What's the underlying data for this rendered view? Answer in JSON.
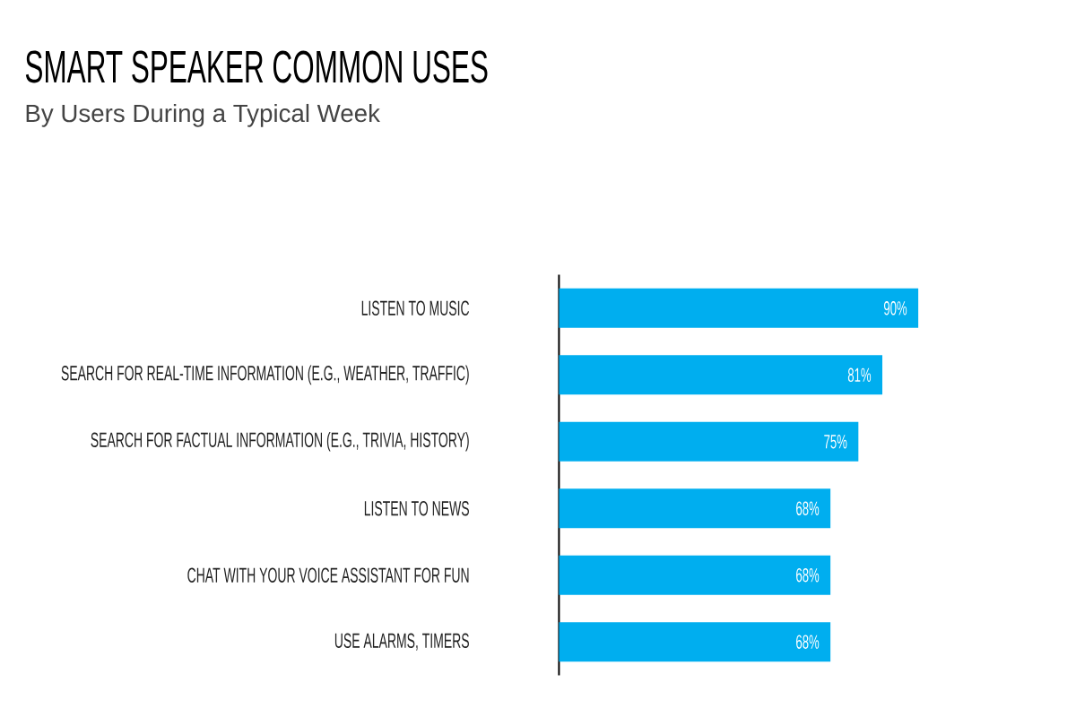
{
  "chart_data": {
    "type": "bar",
    "orientation": "horizontal",
    "title": "SMART SPEAKER COMMON USES",
    "subtitle": "By Users During a Typical Week",
    "categories": [
      "LISTEN TO MUSIC",
      "SEARCH FOR REAL-TIME INFORMATION (E.G., WEATHER, TRAFFIC)",
      "SEARCH FOR FACTUAL INFORMATION (E.G., TRIVIA, HISTORY)",
      "LISTEN TO NEWS",
      "CHAT WITH YOUR VOICE ASSISTANT FOR FUN",
      "USE ALARMS, TIMERS"
    ],
    "values": [
      90,
      81,
      75,
      68,
      68,
      68
    ],
    "value_labels": [
      "90%",
      "81%",
      "75%",
      "68%",
      "68%",
      "68%"
    ],
    "color": "#00aeef",
    "tick_labels": "y"
  }
}
